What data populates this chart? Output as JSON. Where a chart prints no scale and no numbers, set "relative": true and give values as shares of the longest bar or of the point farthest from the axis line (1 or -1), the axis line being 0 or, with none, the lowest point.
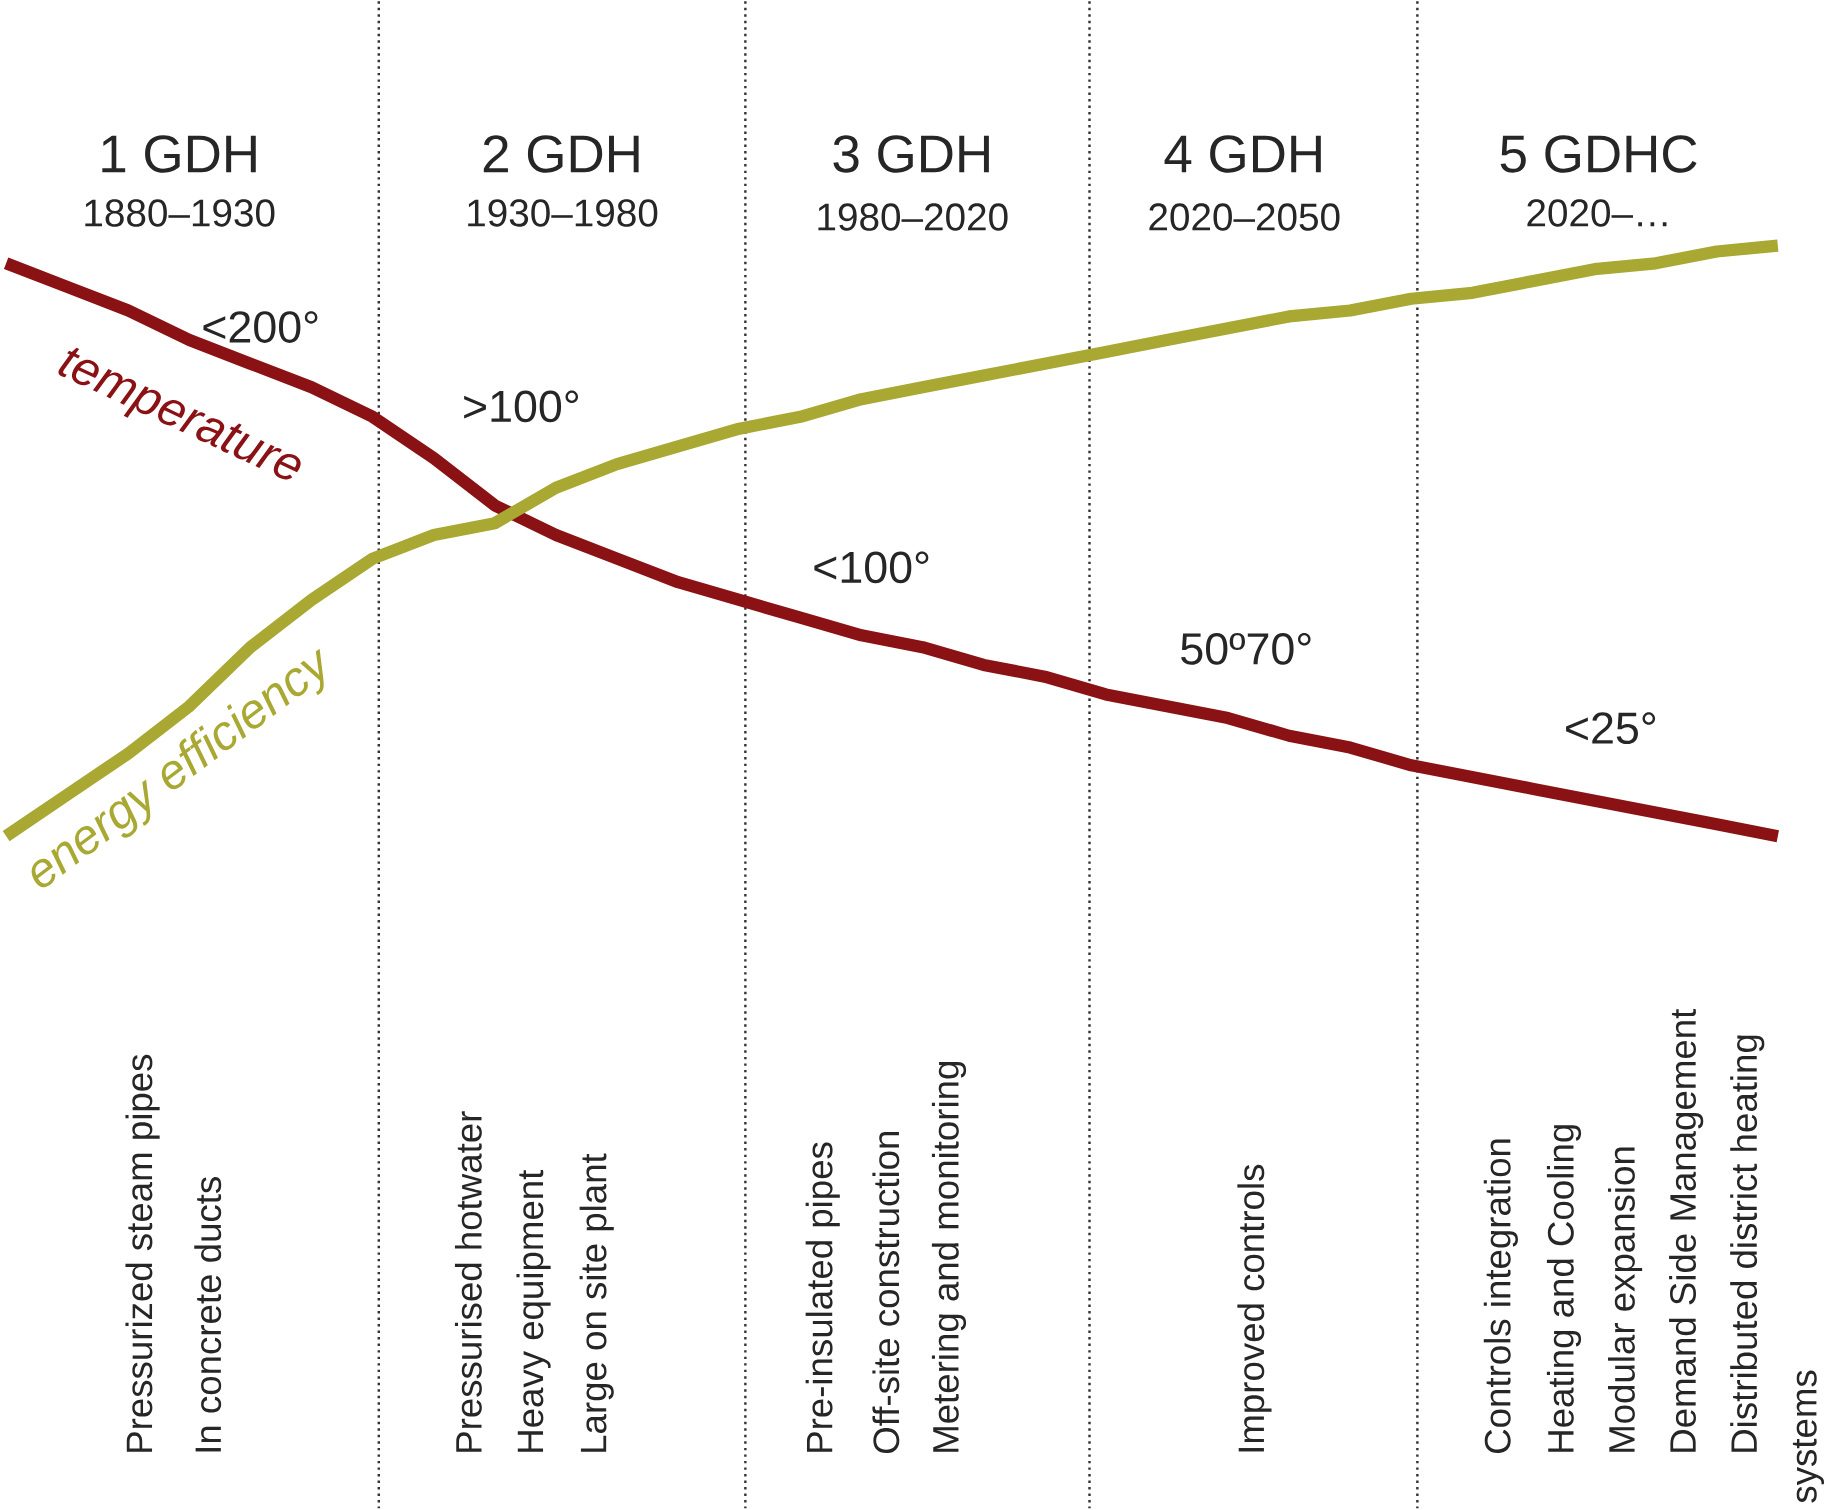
{
  "chart_data": {
    "type": "line",
    "relative": true,
    "marker": "none",
    "line_style": "solid",
    "grid": "x",
    "categories": [
      null,
      null,
      null,
      null,
      null,
      null,
      null,
      null,
      null,
      null,
      null,
      null,
      null,
      null,
      null,
      null,
      null,
      null,
      null,
      null,
      null,
      null,
      null,
      null,
      null,
      null,
      null,
      null,
      null,
      null
    ],
    "series": [
      {
        "name": "temperature",
        "color": "#8b1214",
        "values": [
          0.97,
          0.93,
          0.89,
          0.84,
          0.8,
          0.76,
          0.71,
          0.64,
          0.56,
          0.51,
          0.47,
          0.43,
          0.4,
          0.37,
          0.34,
          0.32,
          0.29,
          0.27,
          0.24,
          0.22,
          0.2,
          0.17,
          0.15,
          0.12,
          0.1,
          0.08,
          0.06,
          0.04,
          0.02,
          0
        ]
      },
      {
        "name": "energy efficiency",
        "color": "#a8a832",
        "values": [
          0,
          0.07,
          0.14,
          0.22,
          0.32,
          0.4,
          0.47,
          0.51,
          0.53,
          0.59,
          0.63,
          0.66,
          0.69,
          0.71,
          0.74,
          0.76,
          0.78,
          0.8,
          0.82,
          0.84,
          0.86,
          0.88,
          0.89,
          0.91,
          0.92,
          0.94,
          0.96,
          0.97,
          0.99,
          1
        ]
      }
    ],
    "annotations": [
      "1 GDH",
      "1880–1930",
      "2 GDH",
      "1930–1980",
      "3 GDH",
      "1980–2020",
      "4 GDH",
      "2020–2050",
      "5 GDHC",
      "2020–…",
      "<200°",
      ">100°",
      "<100°",
      "50º70°",
      "<25°",
      "Pressurized steam pipes",
      "In concrete ducts",
      "Pressurised hotwater",
      "Heavy equipment",
      "Large on site plant",
      "Pre-insulated pipes",
      "Off-site construction",
      "Metering and monitoring",
      "Improved controls",
      "Controls integration",
      "Heating and Cooling",
      "Modular expansion",
      "Demand Side Management",
      "Distributed district heating",
      "systems"
    ]
  }
}
